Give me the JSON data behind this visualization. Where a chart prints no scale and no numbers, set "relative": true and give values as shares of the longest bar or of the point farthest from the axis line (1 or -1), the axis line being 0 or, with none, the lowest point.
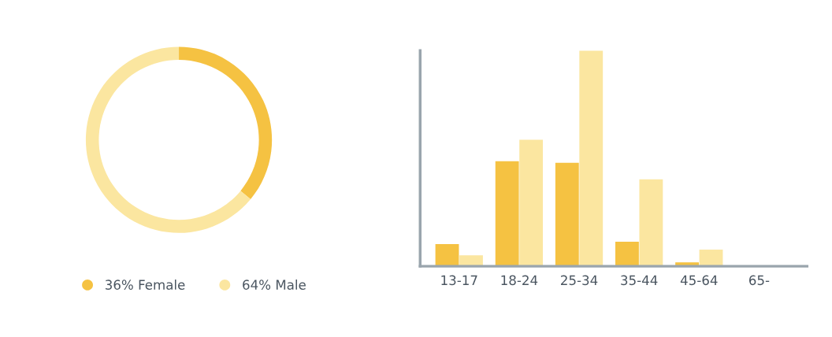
{
  "chart_data": [
    {
      "type": "donut",
      "categories": [
        "36% Female",
        "64% Male"
      ],
      "values": [
        36,
        64
      ],
      "colors": [
        "#f5c242",
        "#fbe6a0"
      ],
      "legend": "bottom"
    },
    {
      "type": "bar",
      "relative": true,
      "categories": [
        "13-17",
        "18-24",
        "25-34",
        "35-44",
        "45-64",
        "65-"
      ],
      "legend": false,
      "grid": false,
      "series": [
        {
          "color": "#f5c242",
          "values": [
            0.103,
            0.487,
            0.48,
            0.114,
            0.018,
            0
          ]
        },
        {
          "color": "#fbe6a0",
          "values": [
            0.051,
            0.586,
            1,
            0.403,
            0.077,
            0
          ]
        }
      ]
    }
  ]
}
